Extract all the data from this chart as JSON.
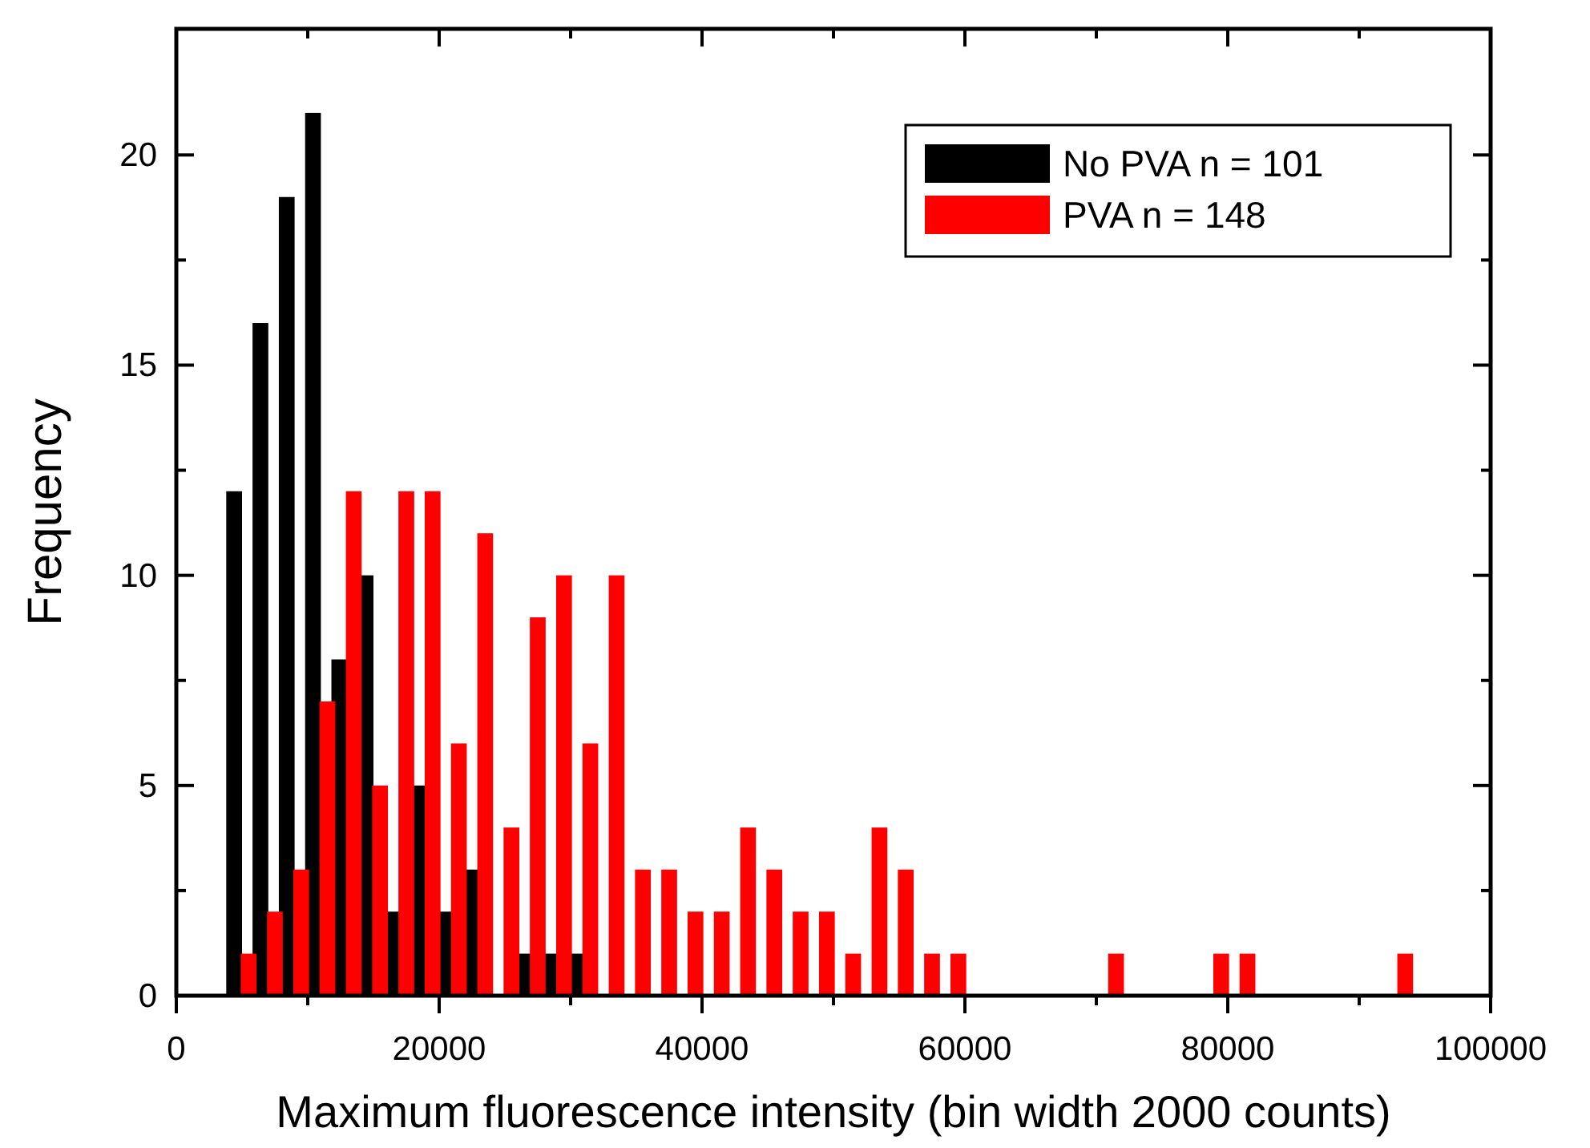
{
  "chart_data": {
    "type": "histogram",
    "xlabel": "Maximum fluorescence intensity (bin width 2000 counts)",
    "ylabel": "Frequency",
    "bins": [
      4000,
      6000,
      8000,
      10000,
      12000,
      14000,
      16000,
      18000,
      20000,
      22000,
      24000,
      26000,
      28000,
      30000,
      32000,
      34000,
      36000,
      38000,
      40000,
      42000,
      44000,
      46000,
      48000,
      50000,
      52000,
      54000,
      56000,
      58000,
      60000,
      62000,
      64000,
      66000,
      68000,
      70000,
      72000,
      74000,
      76000,
      78000,
      80000,
      82000,
      84000,
      86000,
      88000,
      90000,
      92000,
      94000
    ],
    "series": [
      {
        "name": "No PVA n = 101",
        "color": "#000000",
        "values": [
          12,
          16,
          19,
          21,
          8,
          10,
          2,
          5,
          2,
          3,
          0,
          1,
          1,
          1,
          0,
          0,
          0,
          0,
          0,
          0,
          0,
          0,
          0,
          0,
          0,
          0,
          0,
          0,
          0,
          0,
          0,
          0,
          0,
          0,
          0,
          0,
          0,
          0,
          0,
          0,
          0,
          0,
          0,
          0,
          0
        ]
      },
      {
        "name": "PVA n = 148",
        "color": "#ff0000",
        "values": [
          1,
          2,
          3,
          7,
          12,
          5,
          12,
          12,
          6,
          11,
          4,
          9,
          10,
          6,
          10,
          3,
          3,
          2,
          2,
          4,
          3,
          2,
          2,
          1,
          4,
          3,
          1,
          1,
          0,
          0,
          0,
          0,
          0,
          1,
          0,
          0,
          0,
          1,
          1,
          0,
          0,
          0,
          0,
          0,
          1
        ]
      }
    ],
    "xlim": [
      0,
      100000
    ],
    "ylim": [
      0,
      23
    ],
    "xticks": [
      0,
      {
        "value": 10000,
        "label": null
      },
      20000,
      {
        "value": 30000,
        "label": null
      },
      40000,
      {
        "value": 50000,
        "label": null
      },
      60000,
      {
        "value": 70000,
        "label": null
      },
      80000,
      {
        "value": 90000,
        "label": null
      },
      100000
    ],
    "yticks": [
      0,
      {
        "value": 2.5,
        "label": null
      },
      5,
      {
        "value": 7.5,
        "label": null
      },
      10,
      {
        "value": 12.5,
        "label": null
      },
      15,
      {
        "value": 17.5,
        "label": null
      },
      20
    ],
    "legend": "top right",
    "grid": false
  }
}
